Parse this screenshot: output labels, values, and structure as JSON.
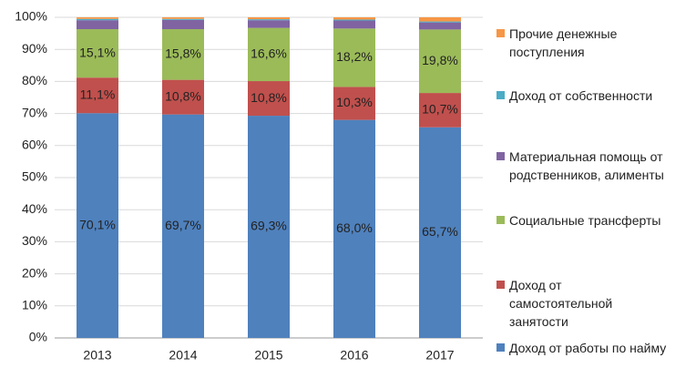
{
  "chart_data": {
    "type": "stacked-bar",
    "categories": [
      "2013",
      "2014",
      "2015",
      "2016",
      "2017"
    ],
    "series": [
      {
        "name": "Доход от работы по найму",
        "color": "#4f81bd",
        "values": [
          70.1,
          69.7,
          69.3,
          68.0,
          65.7
        ],
        "value_labels": [
          "70,1%",
          "69,7%",
          "69,3%",
          "68,0%",
          "65,7%"
        ]
      },
      {
        "name": "Доход от самостоятельной занятости",
        "color": "#c0504d",
        "values": [
          11.1,
          10.8,
          10.8,
          10.3,
          10.7
        ],
        "value_labels": [
          "11,1%",
          "10,8%",
          "10,8%",
          "10,3%",
          "10,7%"
        ]
      },
      {
        "name": "Социальные трансферты",
        "color": "#9bbb59",
        "values": [
          15.1,
          15.8,
          16.6,
          18.2,
          19.8
        ],
        "value_labels": [
          "15,1%",
          "15,8%",
          "16,6%",
          "18,2%",
          "19,8%"
        ]
      },
      {
        "name": "Материальная помощь от родственников, алименты",
        "color": "#8064a2",
        "values": [
          2.8,
          2.9,
          2.4,
          2.5,
          2.2
        ]
      },
      {
        "name": "Доход от собственности",
        "color": "#4bacc6",
        "values": [
          0.4,
          0.3,
          0.3,
          0.3,
          0.3
        ]
      },
      {
        "name": "Прочие денежные поступления",
        "color": "#f79646",
        "values": [
          0.5,
          0.5,
          0.6,
          0.7,
          1.3
        ]
      }
    ],
    "ylim": [
      0,
      100
    ],
    "yticks": [
      {
        "value": 0,
        "label": "0%"
      },
      {
        "value": 10,
        "label": "10%"
      },
      {
        "value": 20,
        "label": "20%"
      },
      {
        "value": 30,
        "label": "30%"
      },
      {
        "value": 40,
        "label": "40%"
      },
      {
        "value": 50,
        "label": "50%"
      },
      {
        "value": 60,
        "label": "60%"
      },
      {
        "value": 70,
        "label": "70%"
      },
      {
        "value": 80,
        "label": "80%"
      },
      {
        "value": 90,
        "label": "90%"
      },
      {
        "value": 100,
        "label": "100%"
      }
    ],
    "grid": true,
    "legend": "right"
  }
}
